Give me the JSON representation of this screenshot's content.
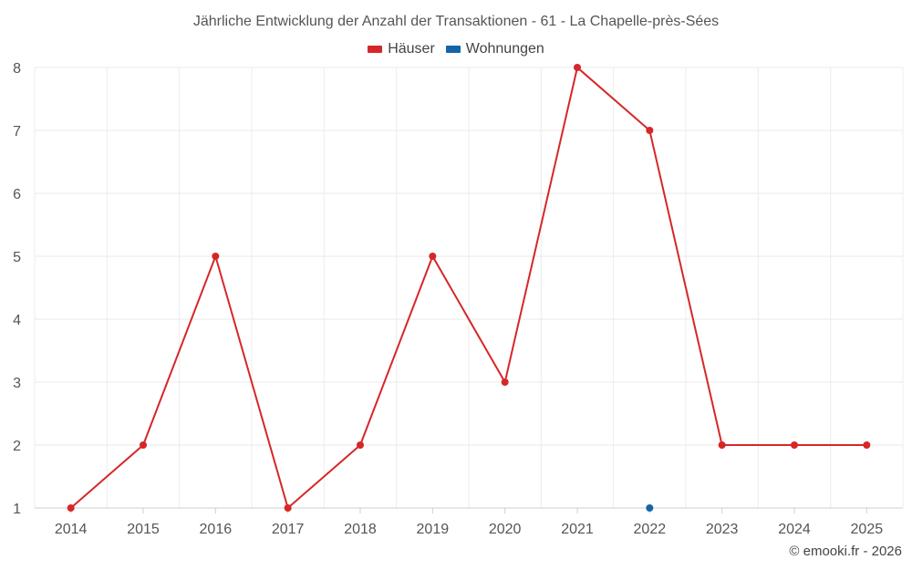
{
  "chart_data": {
    "type": "line",
    "title": "Jährliche Entwicklung der Anzahl der Transaktionen - 61 - La Chapelle-près-Sées",
    "categories": [
      "2014",
      "2015",
      "2016",
      "2017",
      "2018",
      "2019",
      "2020",
      "2021",
      "2022",
      "2023",
      "2024",
      "2025"
    ],
    "series": [
      {
        "name": "Häuser",
        "color": "#d62728",
        "values": [
          1,
          2,
          5,
          1,
          2,
          5,
          3,
          8,
          7,
          2,
          2,
          2
        ]
      },
      {
        "name": "Wohnungen",
        "color": "#1565a8",
        "values": [
          null,
          null,
          null,
          null,
          null,
          null,
          null,
          null,
          1,
          null,
          null,
          null
        ]
      }
    ],
    "yticks": [
      "1",
      "2",
      "3",
      "4",
      "5",
      "6",
      "7",
      "8"
    ],
    "ylim": [
      1,
      8
    ],
    "xlabel": "",
    "ylabel": "",
    "grid": true,
    "legend_position": "top-center"
  },
  "credit": "© emooki.fr - 2026"
}
